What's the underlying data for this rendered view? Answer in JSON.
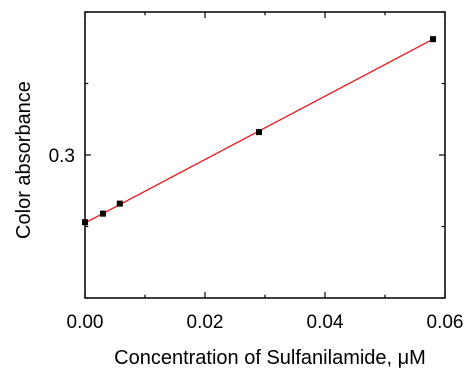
{
  "chart_data": {
    "type": "scatter",
    "title": "",
    "xlabel": "Concentration of Sulfanilamide, μM",
    "ylabel": "Color absorbance",
    "xlim": [
      0.0,
      0.06
    ],
    "ylim": [
      0.2,
      0.4
    ],
    "x_ticks": [
      0.0,
      0.02,
      0.04,
      0.06
    ],
    "x_tick_labels": [
      "0.00",
      "0.02",
      "0.04",
      "0.06"
    ],
    "y_ticks": [
      0.3
    ],
    "y_tick_labels": [
      "0.3"
    ],
    "grid": false,
    "series": [
      {
        "points": [
          {
            "x": 0.0,
            "y": 0.253
          },
          {
            "x": 0.003,
            "y": 0.259
          },
          {
            "x": 0.0058,
            "y": 0.266
          },
          {
            "x": 0.029,
            "y": 0.316
          },
          {
            "x": 0.058,
            "y": 0.381
          }
        ],
        "marker": "square",
        "marker_color": "#000000"
      }
    ],
    "fit_line": {
      "x": [
        0.0,
        0.058
      ],
      "y": [
        0.2525,
        0.381
      ],
      "color": "#e41a1c"
    }
  }
}
